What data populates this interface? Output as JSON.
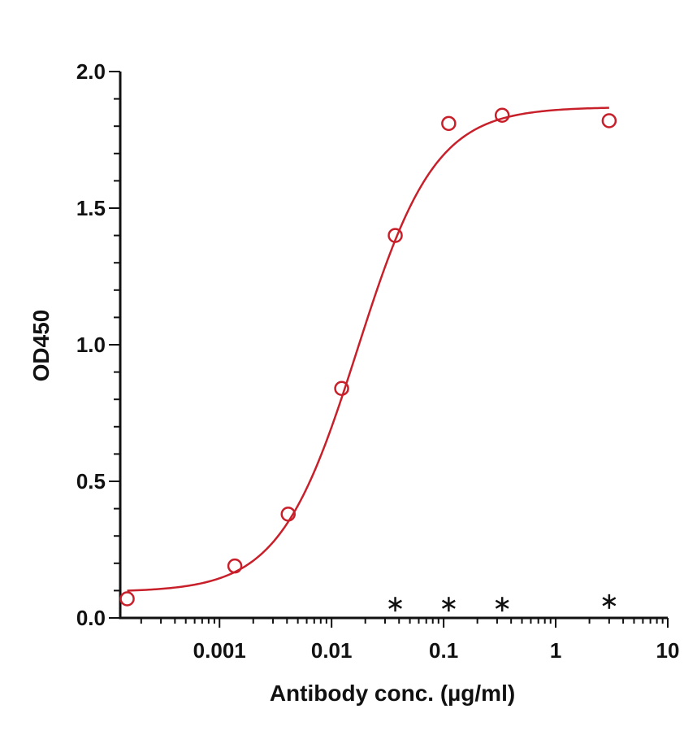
{
  "chart_data": {
    "type": "scatter",
    "title": "",
    "xlabel": "Antibody conc. (µg/ml)",
    "ylabel": "OD450",
    "x_scale": "log",
    "xlim": [
      0.00013,
      10
    ],
    "ylim": [
      0,
      2.0
    ],
    "x_ticks": [
      {
        "value": 0.001,
        "label": "0.001"
      },
      {
        "value": 0.01,
        "label": "0.01"
      },
      {
        "value": 0.1,
        "label": "0.1"
      },
      {
        "value": 1,
        "label": "1"
      },
      {
        "value": 10,
        "label": "10"
      }
    ],
    "y_ticks": [
      {
        "value": 0.0,
        "label": "0.0"
      },
      {
        "value": 0.5,
        "label": "0.5"
      },
      {
        "value": 1.0,
        "label": "1.0"
      },
      {
        "value": 1.5,
        "label": "1.5"
      },
      {
        "value": 2.0,
        "label": "2.0"
      }
    ],
    "grid": false,
    "legend": "none",
    "colors": {
      "series1": "#c8202a",
      "series2": "#111111"
    },
    "series": [
      {
        "marker": "circle",
        "color": "#c8202a",
        "x": [
          0.00015,
          0.00137,
          0.0041,
          0.0123,
          0.037,
          0.111,
          0.333,
          3.0
        ],
        "y": [
          0.07,
          0.19,
          0.38,
          0.84,
          1.4,
          1.81,
          1.84,
          1.82
        ],
        "fit": {
          "bottom": 0.095,
          "top": 1.87,
          "ec50": 0.017,
          "hill": 1.25
        }
      },
      {
        "marker": "star",
        "color": "#111111",
        "x": [
          0.037,
          0.111,
          0.333,
          3.0
        ],
        "y": [
          0.05,
          0.05,
          0.05,
          0.06
        ]
      }
    ]
  }
}
